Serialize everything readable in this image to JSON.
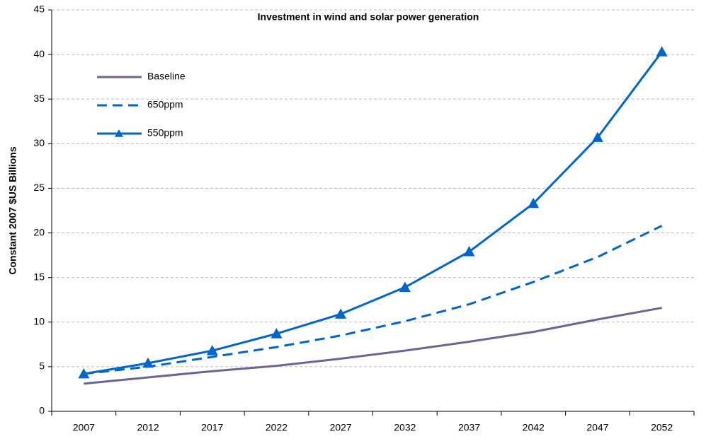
{
  "chart_data": {
    "type": "line",
    "title": "Investment in wind and solar power generation",
    "y_label": "Constant 2007  $US Billions",
    "categories": [
      "2007",
      "2012",
      "2017",
      "2022",
      "2027",
      "2032",
      "2037",
      "2042",
      "2047",
      "2052"
    ],
    "series": [
      {
        "name": "Baseline",
        "color": "#666699",
        "dash": false,
        "marker": null,
        "values": [
          3.1,
          3.8,
          4.5,
          5.1,
          5.9,
          6.8,
          7.8,
          8.9,
          10.3,
          11.6
        ]
      },
      {
        "name": "650ppm",
        "color": "#0066cc",
        "dash": true,
        "marker": null,
        "values": [
          4.2,
          5.0,
          6.1,
          7.2,
          8.5,
          10.1,
          12.0,
          14.5,
          17.3,
          20.8
        ]
      },
      {
        "name": "550ppm",
        "color": "#0066cc",
        "dash": false,
        "marker": "triangle",
        "values": [
          4.2,
          5.4,
          6.8,
          8.7,
          10.9,
          13.9,
          17.9,
          23.3,
          30.7,
          40.3
        ]
      }
    ],
    "ylim": [
      0,
      45
    ],
    "yticks": [
      0,
      5,
      10,
      15,
      20,
      25,
      30,
      35,
      40,
      45
    ],
    "grid": true,
    "legend": "upper left"
  }
}
